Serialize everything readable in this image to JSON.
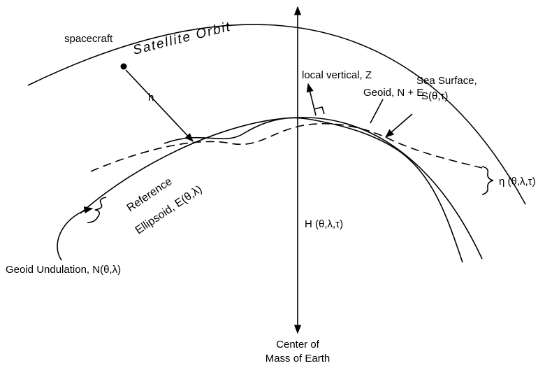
{
  "orbit_label": "Satellite Orbit",
  "spacecraft": "spacecraft",
  "altitude": "h",
  "local_vertical": "local vertical, Z",
  "geoid": "Geoid, N + E",
  "sea_surface": {
    "line1": "Sea Surface,",
    "line2": "S(θ,τ)"
  },
  "ellipsoid": {
    "line1": "Reference",
    "line2": "Ellipsoid, E(θ,λ)"
  },
  "sea_height": "η (θ,λ,τ)",
  "orbit_height": "H (θ,λ,τ)",
  "undulation": "Geoid Undulation, N(θ,λ)",
  "center": {
    "line1": "Center of",
    "line2": "Mass of Earth"
  }
}
